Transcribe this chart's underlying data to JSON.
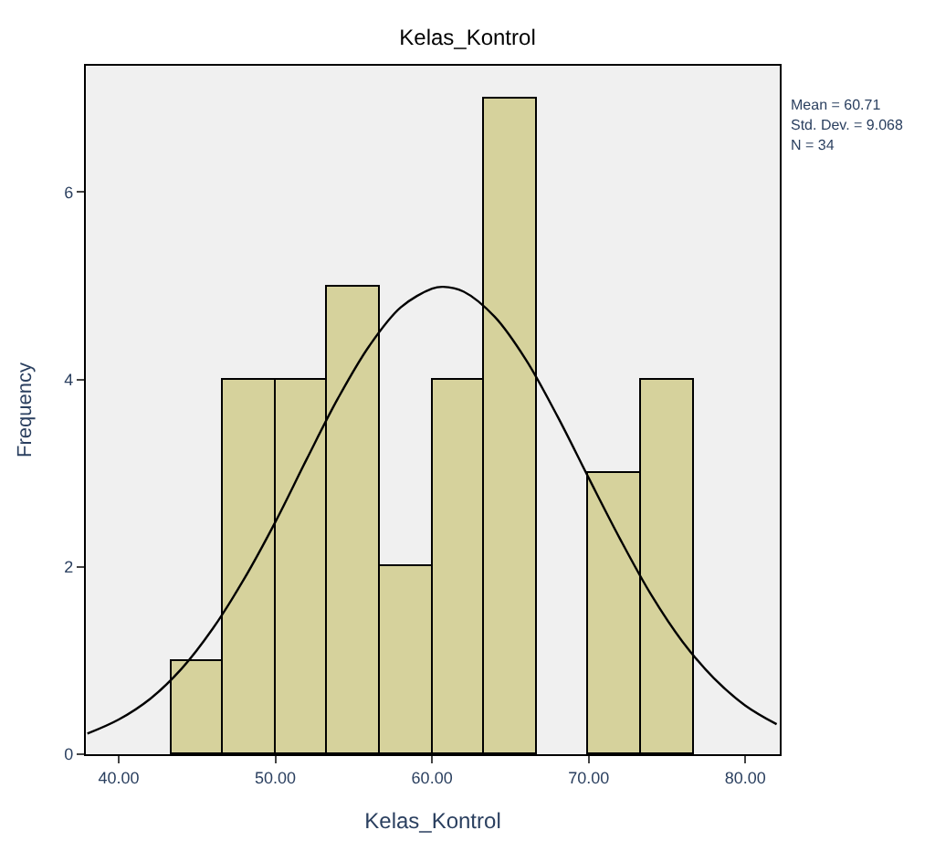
{
  "chart_data": {
    "type": "histogram",
    "title": "Kelas_Kontrol",
    "xlabel": "Kelas_Kontrol",
    "ylabel": "Frequency",
    "bins": [
      43.33,
      46.67,
      50.0,
      53.33,
      56.67,
      60.0,
      63.33,
      66.67,
      70.0,
      73.33,
      76.67
    ],
    "values": [
      1,
      4,
      4,
      5,
      2,
      4,
      7,
      0,
      3,
      4
    ],
    "color": "#d6d29c",
    "series": [
      {
        "type": "line",
        "color": "#000000",
        "x": [
          38,
          40,
          42,
          44,
          46,
          48,
          50,
          52,
          54,
          56,
          58,
          60,
          60.71,
          62,
          64,
          66,
          68,
          70,
          72,
          74,
          76,
          78,
          80,
          82
        ],
        "values": [
          0.22,
          0.37,
          0.59,
          0.91,
          1.34,
          1.87,
          2.48,
          3.15,
          3.8,
          4.36,
          4.77,
          4.97,
          4.99,
          4.94,
          4.67,
          4.21,
          3.61,
          2.95,
          2.3,
          1.7,
          1.2,
          0.81,
          0.52,
          0.32
        ]
      }
    ],
    "xlim": [
      37.9,
      82.2
    ],
    "ylim": [
      0,
      7.35
    ],
    "xticks": [
      {
        "value": 40,
        "label": "40.00"
      },
      {
        "value": 50,
        "label": "50.00"
      },
      {
        "value": 60,
        "label": "60.00"
      },
      {
        "value": 70,
        "label": "70.00"
      },
      {
        "value": 80,
        "label": "80.00"
      }
    ],
    "yticks": [
      0,
      2,
      4,
      6
    ],
    "annotations": [
      "Mean = 60.71",
      "Std. Dev. = 9.068",
      "N = 34"
    ],
    "grid": false
  }
}
